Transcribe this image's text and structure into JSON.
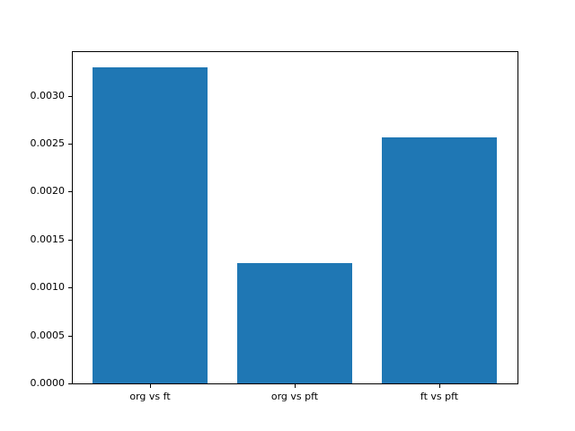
{
  "figure": {
    "background": "#ffffff"
  },
  "chart_data": {
    "type": "bar",
    "categories": [
      "org vs ft",
      "org vs pft",
      "ft vs pft"
    ],
    "values": [
      0.0033,
      0.00126,
      0.00257
    ],
    "title": "",
    "xlabel": "",
    "ylabel": "",
    "ylim": [
      0,
      0.003465
    ],
    "yticks": [
      0.0,
      0.0005,
      0.001,
      0.0015,
      0.002,
      0.0025,
      0.003
    ],
    "ytick_labels": [
      "0.0000",
      "0.0005",
      "0.0010",
      "0.0015",
      "0.0020",
      "0.0025",
      "0.0030"
    ],
    "bar_color": "#1f77b4",
    "axis_color": "#000000",
    "bar_width_fraction": 0.8,
    "x_margin_fraction": 0.05,
    "grid": false,
    "legend": null
  }
}
